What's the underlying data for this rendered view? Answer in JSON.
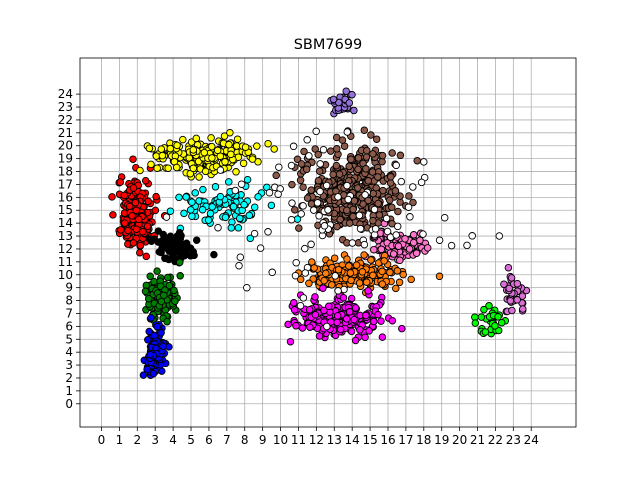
{
  "chart_data": {
    "type": "scatter",
    "title": "SBM7699",
    "xlabel": "",
    "ylabel": "",
    "xlim": [
      -1.2,
      26.5
    ],
    "ylim": [
      -1.8,
      26.8
    ],
    "xticks": [
      0,
      1,
      2,
      3,
      4,
      5,
      6,
      7,
      8,
      9,
      10,
      11,
      12,
      13,
      14,
      15,
      16,
      17,
      18,
      19,
      20,
      21,
      22,
      23,
      24
    ],
    "yticks": [
      0,
      1,
      2,
      3,
      4,
      5,
      6,
      7,
      8,
      9,
      10,
      11,
      12,
      13,
      14,
      15,
      16,
      17,
      18,
      19,
      20,
      21,
      22,
      23,
      24
    ],
    "grid": true,
    "legend": "none",
    "clusters": [
      {
        "color": "#ff0000",
        "center": [
          1.9,
          14.8
        ],
        "spread": [
          0.9,
          2.6
        ],
        "count": 170
      },
      {
        "color": "#ffff00",
        "center": [
          5.6,
          19.2
        ],
        "spread": [
          2.6,
          1.1
        ],
        "count": 230
      },
      {
        "color": "#00ffff",
        "center": [
          7.0,
          15.3
        ],
        "spread": [
          2.6,
          1.4
        ],
        "count": 90
      },
      {
        "color": "#000000",
        "center": [
          4.0,
          12.2
        ],
        "spread": [
          1.1,
          1.1
        ],
        "count": 90
      },
      {
        "color": "#008000",
        "center": [
          3.3,
          8.3
        ],
        "spread": [
          0.8,
          1.7
        ],
        "count": 110
      },
      {
        "color": "#0000ff",
        "center": [
          3.0,
          4.0
        ],
        "spread": [
          0.5,
          1.6
        ],
        "count": 100
      },
      {
        "color": "#8b5a4a",
        "center": [
          14.0,
          16.5
        ],
        "spread": [
          2.4,
          3.0
        ],
        "count": 420
      },
      {
        "color": "#9370db",
        "center": [
          13.5,
          23.0
        ],
        "spread": [
          0.6,
          0.8
        ],
        "count": 30
      },
      {
        "color": "#ff77cc",
        "center": [
          16.5,
          12.3
        ],
        "spread": [
          1.4,
          1.0
        ],
        "count": 120
      },
      {
        "color": "#ff7f0e",
        "center": [
          14.0,
          10.0
        ],
        "spread": [
          2.3,
          1.0
        ],
        "count": 200
      },
      {
        "color": "#ff00ff",
        "center": [
          13.3,
          6.8
        ],
        "spread": [
          2.2,
          1.3
        ],
        "count": 220
      },
      {
        "color": "#00ff00",
        "center": [
          21.8,
          6.2
        ],
        "spread": [
          0.8,
          1.0
        ],
        "count": 30
      },
      {
        "color": "#da70d6",
        "center": [
          23.0,
          8.7
        ],
        "spread": [
          0.7,
          1.5
        ],
        "count": 40
      },
      {
        "color": "#ffffff",
        "center": [
          13.0,
          14.0
        ],
        "spread": [
          6.0,
          5.0
        ],
        "count": 90
      }
    ]
  },
  "colors": {
    "grid": "#b0b0b0",
    "background": "#ffffff",
    "marker_edge": "#000000"
  }
}
